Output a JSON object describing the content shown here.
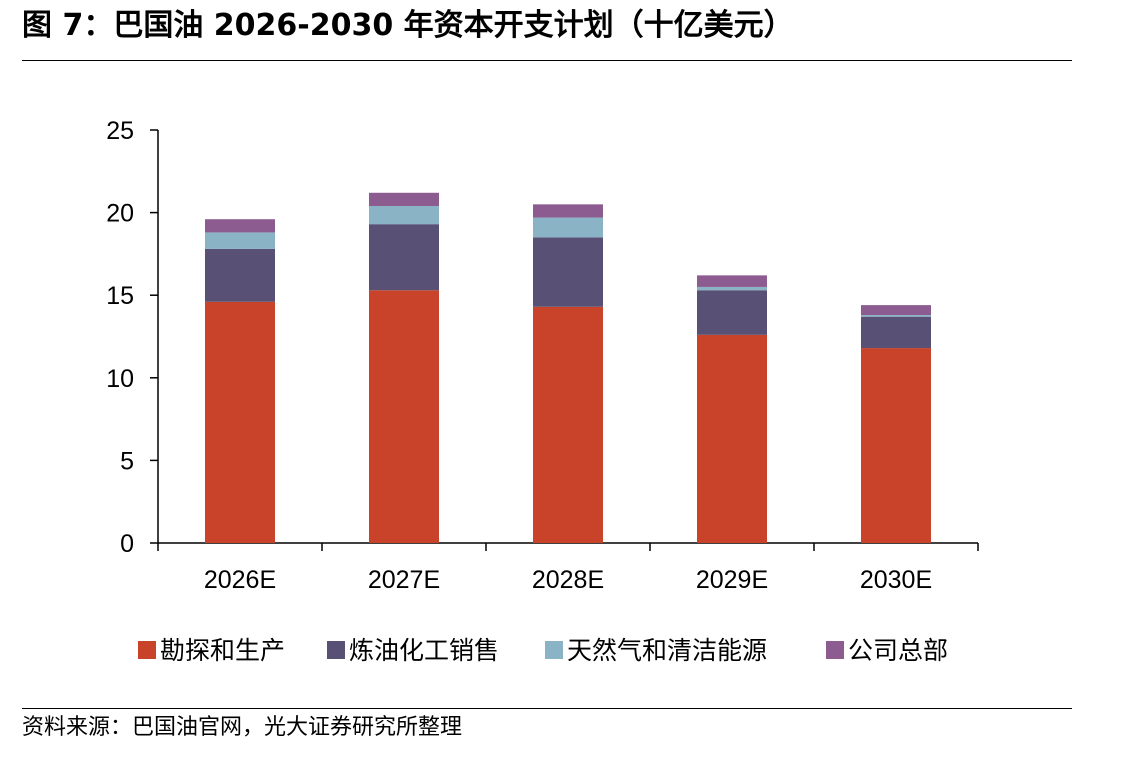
{
  "title": "图 7：巴国油 2026-2030 年资本开支计划（十亿美元）",
  "source": "资料来源：巴国油官网，光大证券研究所整理",
  "chart_data": {
    "type": "bar",
    "stacked": true,
    "categories": [
      "2026E",
      "2027E",
      "2028E",
      "2029E",
      "2030E"
    ],
    "series": [
      {
        "name": "勘探和生产",
        "color": "#c8432a",
        "values": [
          14.6,
          15.3,
          14.3,
          12.6,
          11.8
        ]
      },
      {
        "name": "炼油化工销售",
        "color": "#585175",
        "values": [
          3.2,
          4.0,
          4.2,
          2.7,
          1.9
        ]
      },
      {
        "name": "天然气和清洁能源",
        "color": "#8ab4c6",
        "values": [
          1.0,
          1.1,
          1.2,
          0.2,
          0.1
        ]
      },
      {
        "name": "公司总部",
        "color": "#8c5b8f",
        "values": [
          0.8,
          0.8,
          0.8,
          0.7,
          0.6
        ]
      }
    ],
    "ylim": [
      0,
      25
    ],
    "yticks": [
      0,
      5,
      10,
      15,
      20,
      25
    ],
    "grid": false,
    "legend": "bottom"
  }
}
